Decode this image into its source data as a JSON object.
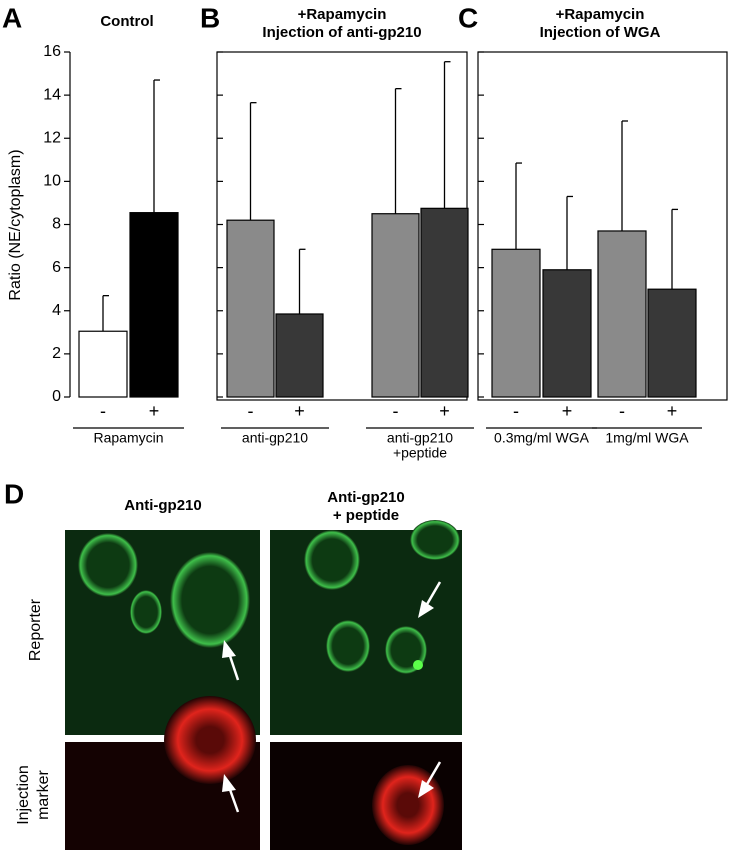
{
  "chart_data": [
    {
      "type": "bar",
      "panel_label": "A",
      "title": [
        "Control"
      ],
      "ylabel": "Ratio (NE/cytoplasm)",
      "ylim": [
        0,
        16
      ],
      "yticks": [
        0,
        2,
        4,
        6,
        8,
        10,
        12,
        14,
        16
      ],
      "tick_labels": true,
      "frame": false,
      "colors": [
        "#ffffff",
        "#000000"
      ],
      "groups": [
        {
          "label": [
            "Rapamycin"
          ],
          "categories": [
            "-",
            "+"
          ],
          "values": [
            3.05,
            8.55
          ],
          "errors": [
            1.65,
            6.15
          ]
        }
      ]
    },
    {
      "type": "bar",
      "panel_label": "B",
      "title": [
        "+Rapamycin",
        "Injection of anti-gp210"
      ],
      "ylim": [
        0,
        16
      ],
      "yticks": [
        0,
        2,
        4,
        6,
        8,
        10,
        12,
        14,
        16
      ],
      "tick_labels": false,
      "frame": true,
      "colors": [
        "#8a8a8a",
        "#383838"
      ],
      "groups": [
        {
          "label": [
            "anti-gp210"
          ],
          "categories": [
            "-",
            "+"
          ],
          "values": [
            8.2,
            3.85
          ],
          "errors": [
            5.45,
            3.0
          ]
        },
        {
          "label": [
            "anti-gp210",
            "+peptide"
          ],
          "categories": [
            "-",
            "+"
          ],
          "values": [
            8.5,
            8.75
          ],
          "errors": [
            5.8,
            6.8
          ]
        }
      ]
    },
    {
      "type": "bar",
      "panel_label": "C",
      "title": [
        "+Rapamycin",
        "Injection of WGA"
      ],
      "ylim": [
        0,
        16
      ],
      "yticks": [
        0,
        2,
        4,
        6,
        8,
        10,
        12,
        14,
        16
      ],
      "tick_labels": false,
      "frame": true,
      "colors": [
        "#8a8a8a",
        "#383838"
      ],
      "groups": [
        {
          "label": [
            "0.3mg/ml WGA"
          ],
          "categories": [
            "-",
            "+"
          ],
          "values": [
            6.85,
            5.9
          ],
          "errors": [
            4.0,
            3.4
          ]
        },
        {
          "label": [
            "1mg/ml WGA"
          ],
          "categories": [
            "-",
            "+"
          ],
          "values": [
            7.7,
            5.0
          ],
          "errors": [
            5.1,
            3.7
          ]
        }
      ]
    }
  ],
  "panel_d": {
    "label": "D",
    "columns": [
      [
        "Anti-gp210"
      ],
      [
        "Anti-gp210",
        "+ peptide"
      ]
    ],
    "rows": [
      [
        "Reporter"
      ],
      [
        "Injection",
        "marker"
      ]
    ]
  }
}
